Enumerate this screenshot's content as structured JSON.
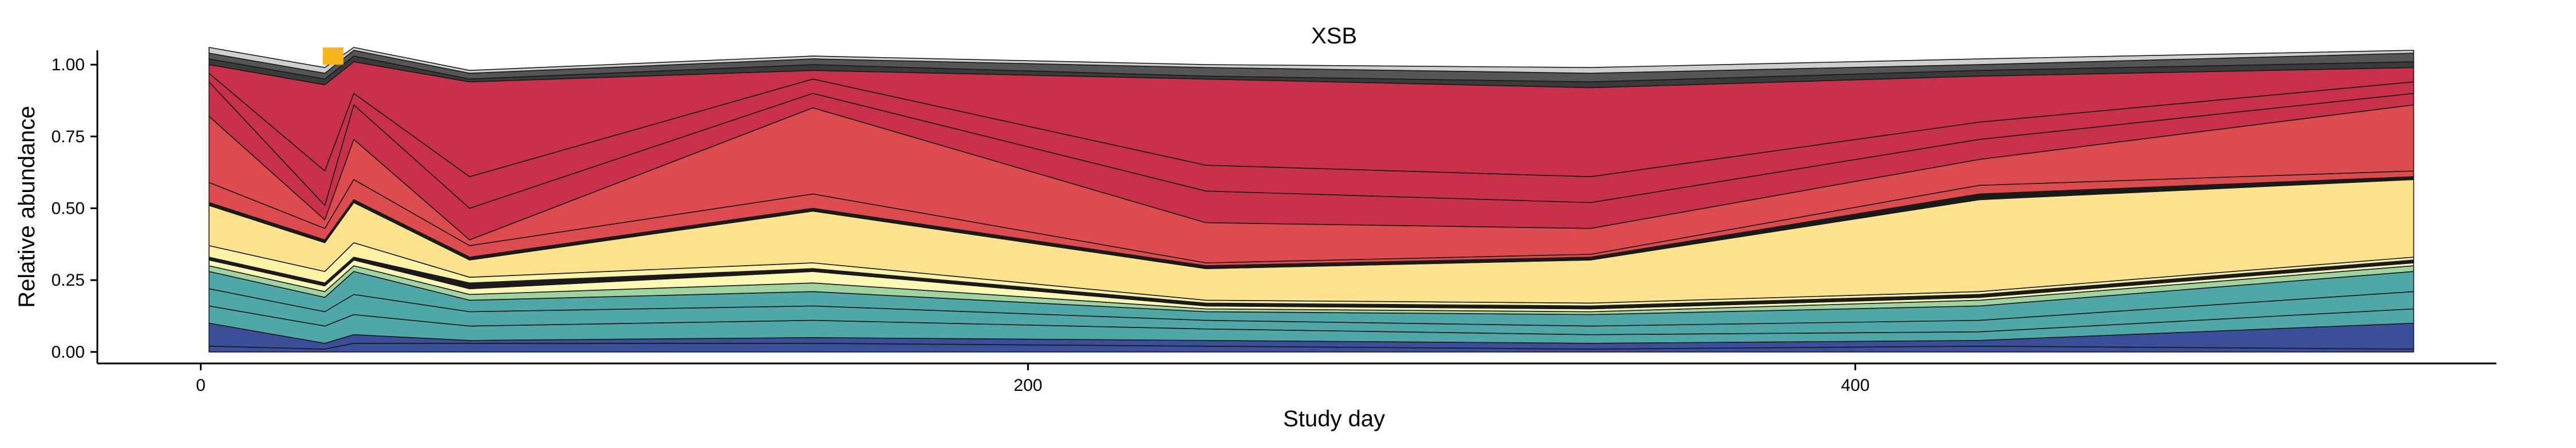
{
  "chart_data": {
    "type": "area",
    "title": "XSB",
    "xlabel": "Study day",
    "ylabel": "Relative abundance",
    "xlim": [
      -25,
      555
    ],
    "ylim": [
      -0.04,
      1.05
    ],
    "x_ticks": [
      0,
      200,
      400
    ],
    "y_ticks": [
      0.0,
      0.25,
      0.5,
      0.75,
      1.0
    ],
    "y_tick_labels": [
      "0.00",
      "0.25",
      "0.50",
      "0.75",
      "1.00"
    ],
    "grid": false,
    "legend": "none",
    "x": [
      2,
      30,
      37,
      65,
      148,
      243,
      336,
      430,
      535
    ],
    "marker": {
      "x": 32,
      "y": 1.02,
      "color": "#F5B51B"
    },
    "series": [
      {
        "color": "#3B4E9A",
        "values": [
          0.02,
          0.01,
          0.03,
          0.03,
          0.03,
          0.02,
          0.01,
          0.02,
          0.01
        ]
      },
      {
        "color": "#3B4E9A",
        "values": [
          0.08,
          0.02,
          0.03,
          0.01,
          0.02,
          0.02,
          0.02,
          0.02,
          0.09
        ]
      },
      {
        "color": "#4FA7A8",
        "values": [
          0.06,
          0.06,
          0.07,
          0.05,
          0.06,
          0.04,
          0.03,
          0.03,
          0.05
        ]
      },
      {
        "color": "#4FA7A8",
        "values": [
          0.06,
          0.05,
          0.07,
          0.05,
          0.05,
          0.03,
          0.03,
          0.04,
          0.06
        ]
      },
      {
        "color": "#4FA7A8",
        "values": [
          0.06,
          0.05,
          0.08,
          0.04,
          0.05,
          0.03,
          0.04,
          0.05,
          0.07
        ]
      },
      {
        "color": "#9FD3A0",
        "values": [
          0.02,
          0.02,
          0.02,
          0.02,
          0.03,
          0.01,
          0.01,
          0.02,
          0.02
        ]
      },
      {
        "color": "#FFF8B4",
        "values": [
          0.02,
          0.02,
          0.02,
          0.02,
          0.04,
          0.01,
          0.01,
          0.01,
          0.01
        ]
      },
      {
        "color": "#1a1a1a",
        "values": [
          0.01,
          0.01,
          0.01,
          0.02,
          0.01,
          0.01,
          0.01,
          0.01,
          0.01
        ]
      },
      {
        "color": "#FFF3A8",
        "values": [
          0.04,
          0.04,
          0.05,
          0.02,
          0.02,
          0.01,
          0.01,
          0.01,
          0.01
        ]
      },
      {
        "color": "#FFE28E",
        "values": [
          0.14,
          0.1,
          0.14,
          0.06,
          0.18,
          0.11,
          0.15,
          0.32,
          0.27
        ]
      },
      {
        "color": "#1a1a1a",
        "values": [
          0.01,
          0.01,
          0.01,
          0.01,
          0.01,
          0.01,
          0.01,
          0.02,
          0.01
        ]
      },
      {
        "color": "#DC4B4E",
        "values": [
          0.07,
          0.04,
          0.07,
          0.04,
          0.05,
          0.01,
          0.01,
          0.03,
          0.02
        ]
      },
      {
        "color": "#DC4B4E",
        "values": [
          0.23,
          0.03,
          0.14,
          0.02,
          0.3,
          0.14,
          0.09,
          0.09,
          0.23
        ]
      },
      {
        "color": "#C9304A",
        "values": [
          0.12,
          0.05,
          0.12,
          0.11,
          0.05,
          0.11,
          0.09,
          0.07,
          0.04
        ]
      },
      {
        "color": "#C9304A",
        "values": [
          0.03,
          0.12,
          0.04,
          0.11,
          0.05,
          0.09,
          0.09,
          0.06,
          0.04
        ]
      },
      {
        "color": "#C9304A",
        "values": [
          0.03,
          0.3,
          0.11,
          0.33,
          0.03,
          0.3,
          0.31,
          0.16,
          0.05
        ]
      },
      {
        "color": "#3a3a3a",
        "values": [
          0.02,
          0.02,
          0.02,
          0.01,
          0.02,
          0.01,
          0.02,
          0.02,
          0.02
        ]
      },
      {
        "color": "#555555",
        "values": [
          0.02,
          0.02,
          0.02,
          0.02,
          0.02,
          0.03,
          0.03,
          0.02,
          0.03
        ]
      },
      {
        "color": "#CFCFCF",
        "values": [
          0.02,
          0.02,
          0.01,
          0.01,
          0.01,
          0.01,
          0.02,
          0.02,
          0.01
        ]
      }
    ]
  }
}
